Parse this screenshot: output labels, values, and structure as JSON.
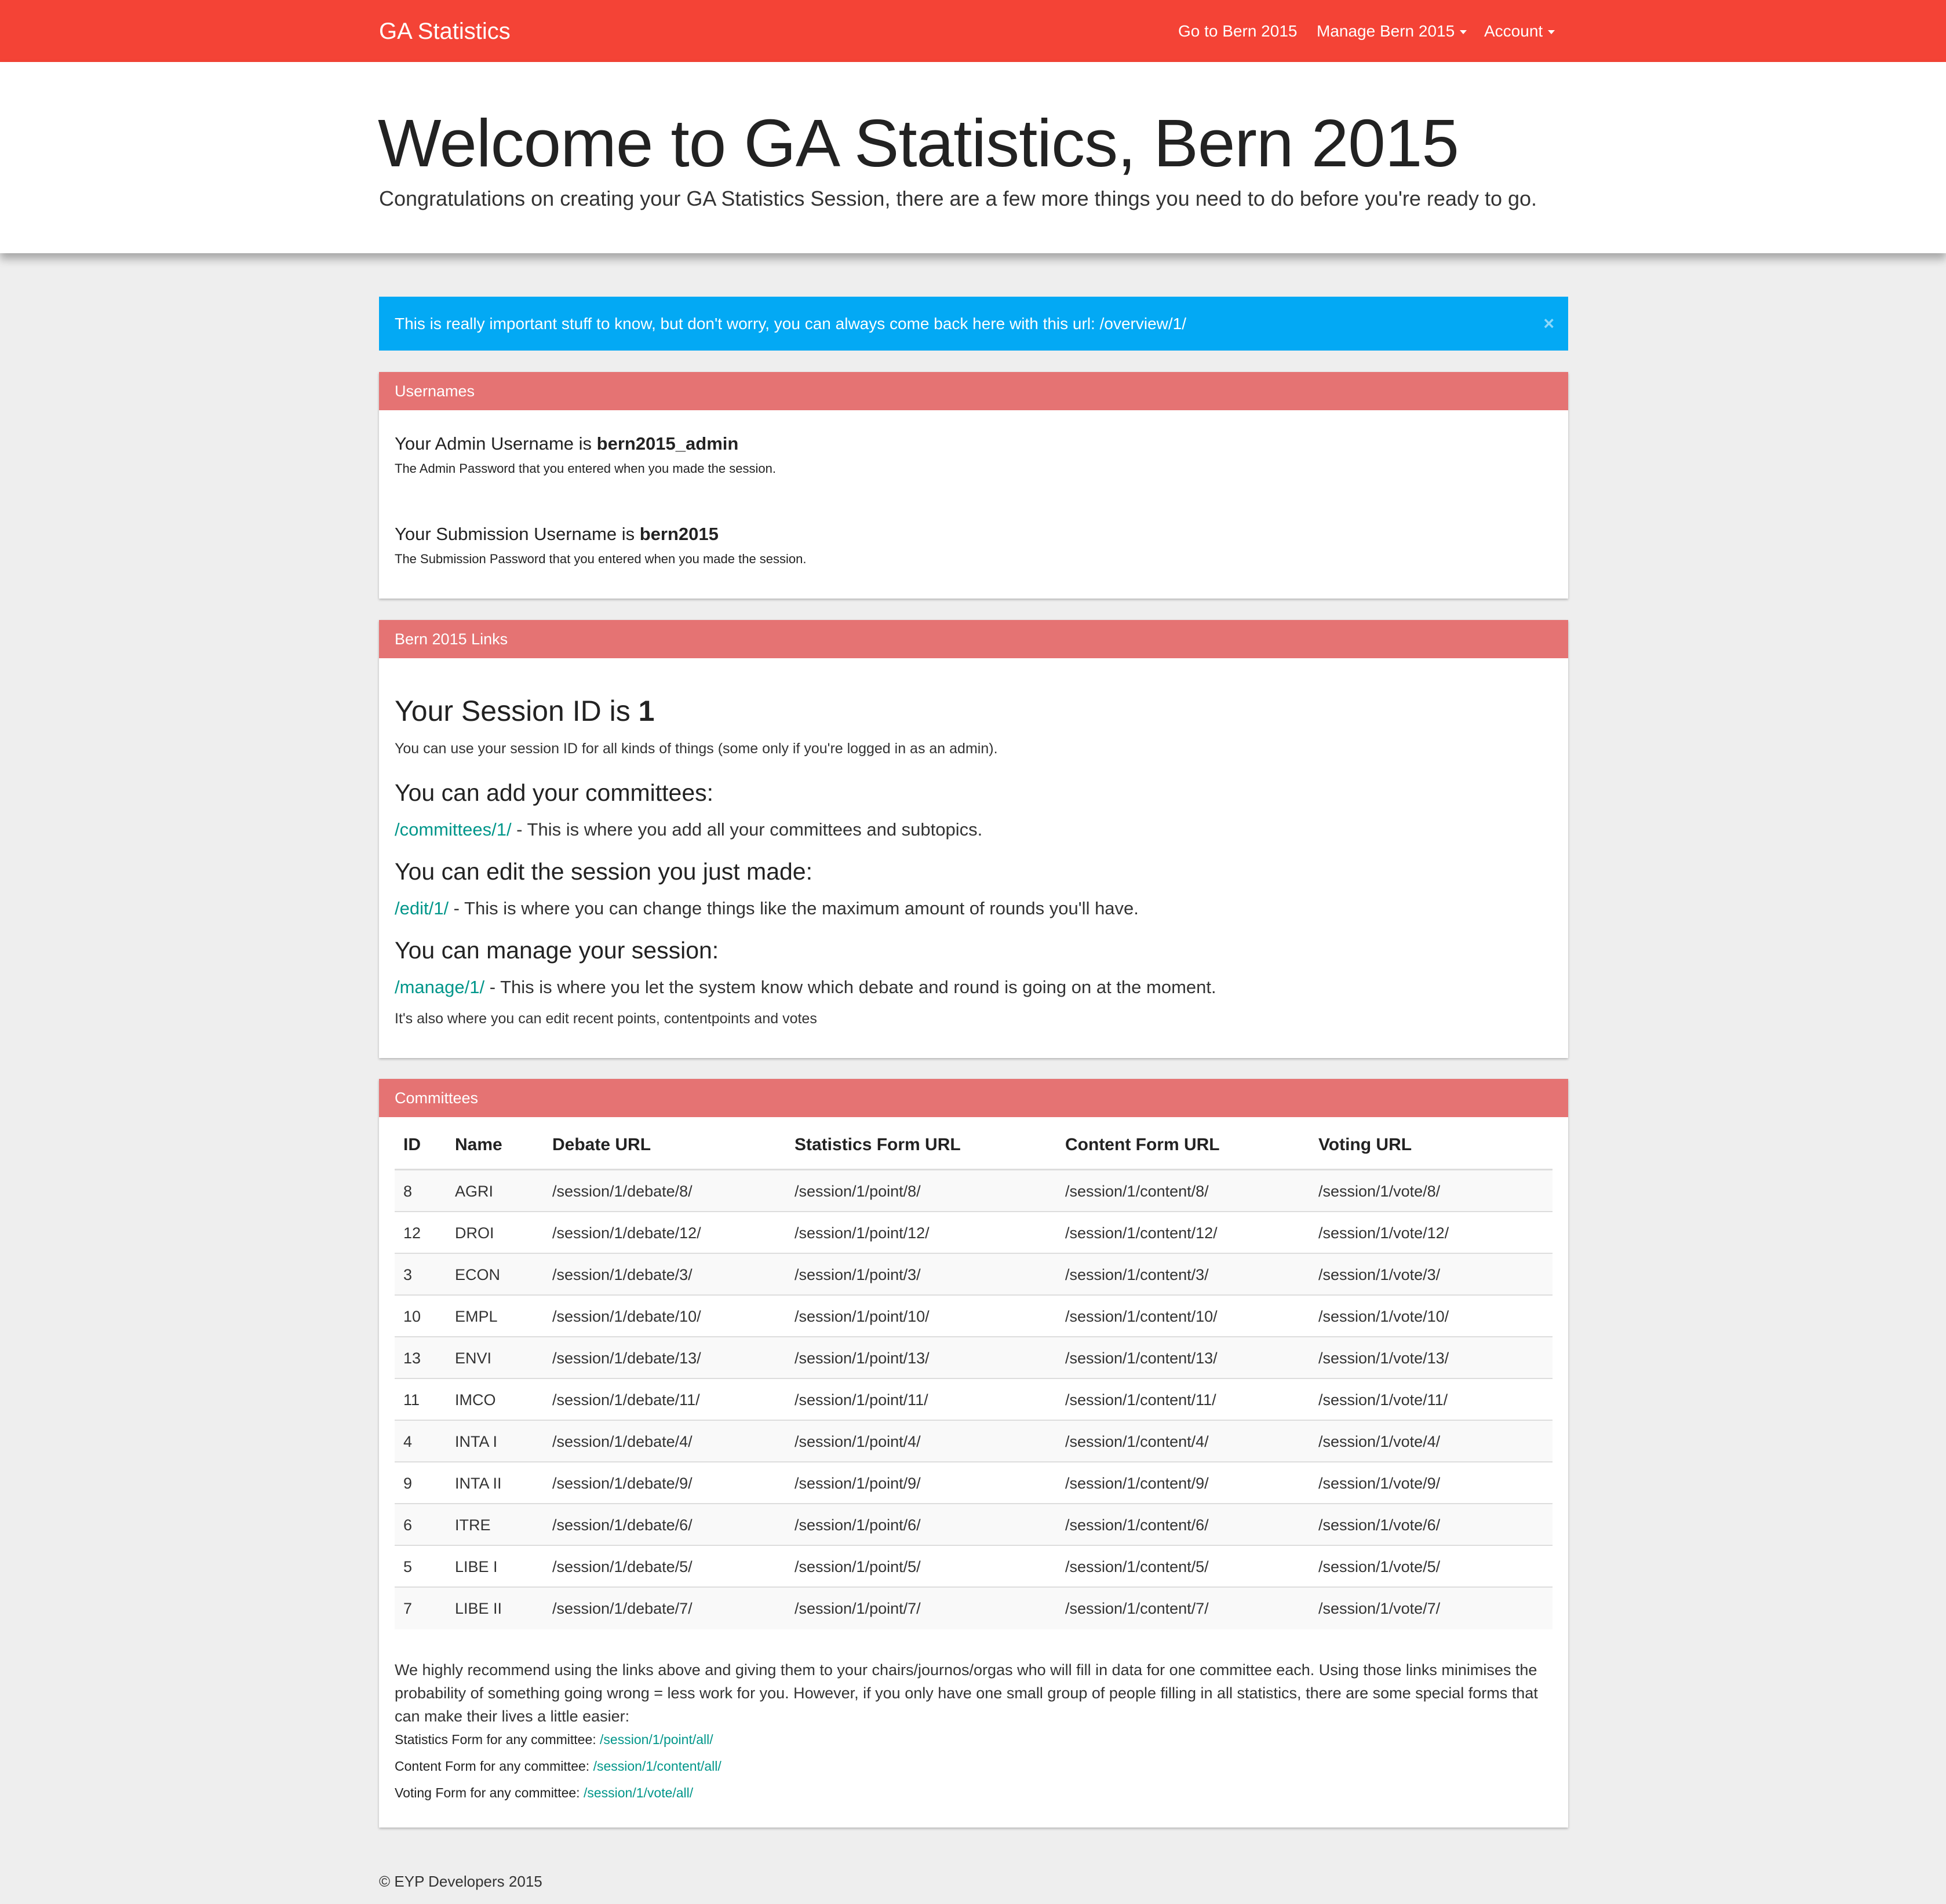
{
  "navbar": {
    "brand": "GA Statistics",
    "items": [
      {
        "label": "Go to Bern 2015"
      },
      {
        "label": "Manage Bern 2015"
      },
      {
        "label": "Account"
      }
    ]
  },
  "jumbotron": {
    "title": "Welcome to GA Statistics, Bern 2015",
    "subtitle": "Congratulations on creating your GA Statistics Session, there are a few more things you need to do before you're ready to go."
  },
  "alert": {
    "text": "This is really important stuff to know, but don't worry, you can always come back here with this url: /overview/1/",
    "close": "×"
  },
  "usernames": {
    "heading": "Usernames",
    "admin_prefix": "Your Admin Username is ",
    "admin_username": "bern2015_admin",
    "admin_note": "The Admin Password that you entered when you made the session.",
    "submission_prefix": "Your Submission Username is ",
    "submission_username": "bern2015",
    "submission_note": "The Submission Password that you entered when you made the session."
  },
  "links": {
    "heading": "Bern 2015 Links",
    "session_prefix": "Your Session ID is ",
    "session_id": "1",
    "session_note": "You can use your session ID for all kinds of things (some only if you're logged in as an admin).",
    "committees_title": "You can add your committees:",
    "committees_link": "/committees/1/",
    "committees_text": " - This is where you add all your committees and subtopics.",
    "edit_title": "You can edit the session you just made:",
    "edit_link": "/edit/1/",
    "edit_text": " - This is where you can change things like the maximum amount of rounds you'll have.",
    "manage_title": "You can manage your session:",
    "manage_link": "/manage/1/",
    "manage_text": " - This is where you let the system know which debate and round is going on at the moment.",
    "manage_note": "It's also where you can edit recent points, contentpoints and votes"
  },
  "committees": {
    "heading": "Committees",
    "columns": [
      "ID",
      "Name",
      "Debate URL",
      "Statistics Form URL",
      "Content Form URL",
      "Voting URL"
    ],
    "rows": [
      {
        "id": "8",
        "name": "AGRI",
        "debate": "/session/1/debate/8/",
        "point": "/session/1/point/8/",
        "content": "/session/1/content/8/",
        "vote": "/session/1/vote/8/"
      },
      {
        "id": "12",
        "name": "DROI",
        "debate": "/session/1/debate/12/",
        "point": "/session/1/point/12/",
        "content": "/session/1/content/12/",
        "vote": "/session/1/vote/12/"
      },
      {
        "id": "3",
        "name": "ECON",
        "debate": "/session/1/debate/3/",
        "point": "/session/1/point/3/",
        "content": "/session/1/content/3/",
        "vote": "/session/1/vote/3/"
      },
      {
        "id": "10",
        "name": "EMPL",
        "debate": "/session/1/debate/10/",
        "point": "/session/1/point/10/",
        "content": "/session/1/content/10/",
        "vote": "/session/1/vote/10/"
      },
      {
        "id": "13",
        "name": "ENVI",
        "debate": "/session/1/debate/13/",
        "point": "/session/1/point/13/",
        "content": "/session/1/content/13/",
        "vote": "/session/1/vote/13/"
      },
      {
        "id": "11",
        "name": "IMCO",
        "debate": "/session/1/debate/11/",
        "point": "/session/1/point/11/",
        "content": "/session/1/content/11/",
        "vote": "/session/1/vote/11/"
      },
      {
        "id": "4",
        "name": "INTA I",
        "debate": "/session/1/debate/4/",
        "point": "/session/1/point/4/",
        "content": "/session/1/content/4/",
        "vote": "/session/1/vote/4/"
      },
      {
        "id": "9",
        "name": "INTA II",
        "debate": "/session/1/debate/9/",
        "point": "/session/1/point/9/",
        "content": "/session/1/content/9/",
        "vote": "/session/1/vote/9/"
      },
      {
        "id": "6",
        "name": "ITRE",
        "debate": "/session/1/debate/6/",
        "point": "/session/1/point/6/",
        "content": "/session/1/content/6/",
        "vote": "/session/1/vote/6/"
      },
      {
        "id": "5",
        "name": "LIBE I",
        "debate": "/session/1/debate/5/",
        "point": "/session/1/point/5/",
        "content": "/session/1/content/5/",
        "vote": "/session/1/vote/5/"
      },
      {
        "id": "7",
        "name": "LIBE II",
        "debate": "/session/1/debate/7/",
        "point": "/session/1/point/7/",
        "content": "/session/1/content/7/",
        "vote": "/session/1/vote/7/"
      }
    ],
    "recommendation": "We highly recommend using the links above and giving them to your chairs/journos/orgas who will fill in data for one committee each. Using those links minimises the probability of something going wrong = less work for you. However, if you only have one small group of people filling in all statistics, there are some special forms that can make their lives a little easier:",
    "forms": [
      {
        "label": "Statistics Form for any committee: ",
        "link": "/session/1/point/all/"
      },
      {
        "label": "Content Form for any committee: ",
        "link": "/session/1/content/all/"
      },
      {
        "label": "Voting Form for any committee: ",
        "link": "/session/1/vote/all/"
      }
    ]
  },
  "footer": {
    "text": "© EYP Developers 2015"
  },
  "colors": {
    "navbar": "#f44336",
    "panel_heading": "#e57373",
    "alert": "#03a9f4",
    "link": "#00968a",
    "background": "#eeeeee"
  }
}
